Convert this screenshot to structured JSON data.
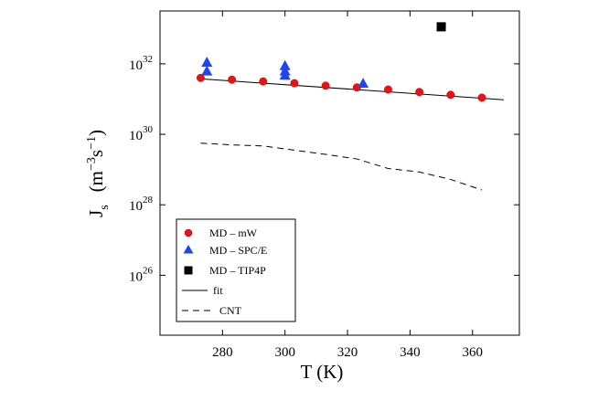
{
  "chart_data": {
    "type": "scatter",
    "xlabel": "T  (K)",
    "ylabel": {
      "main": "J",
      "sub": "s",
      "units": "(m",
      "sup1": "−3",
      "mid": "s",
      "sup2": "−1",
      "close": ")"
    },
    "xlim": [
      260,
      375
    ],
    "ylim_log10": [
      24.3,
      33.5
    ],
    "yscale": "log",
    "x_ticks": [
      280,
      300,
      320,
      340,
      360
    ],
    "x_tick_labels": [
      "280",
      "300",
      "320",
      "340",
      "360"
    ],
    "y_ticks_log10": [
      26,
      28,
      30,
      32
    ],
    "y_tick_labels": [
      {
        "base": "10",
        "exp": "26"
      },
      {
        "base": "10",
        "exp": "28"
      },
      {
        "base": "10",
        "exp": "30"
      },
      {
        "base": "10",
        "exp": "32"
      }
    ],
    "grid": false,
    "legend_position": "bottom-left",
    "series": [
      {
        "name": "MD – mW",
        "marker": "circle",
        "color": "#ee1111",
        "points": [
          [
            273,
            31.6
          ],
          [
            283,
            31.55
          ],
          [
            293,
            31.5
          ],
          [
            303,
            31.45
          ],
          [
            313,
            31.38
          ],
          [
            323,
            31.33
          ],
          [
            333,
            31.27
          ],
          [
            343,
            31.2
          ],
          [
            353,
            31.12
          ],
          [
            363,
            31.04
          ]
        ]
      },
      {
        "name": "MD – SPC/E",
        "marker": "triangle",
        "color": "#2244ee",
        "points": [
          [
            275,
            32.05
          ],
          [
            275,
            31.8
          ],
          [
            300,
            31.95
          ],
          [
            300,
            31.8
          ],
          [
            300,
            31.68
          ],
          [
            325,
            31.45
          ]
        ]
      },
      {
        "name": "MD – TIP4P",
        "marker": "square",
        "color": "#000000",
        "points": [
          [
            350,
            33.05
          ]
        ]
      },
      {
        "name": "fit",
        "style": "solid",
        "color": "#000000",
        "points": [
          [
            272,
            31.58
          ],
          [
            370,
            30.98
          ]
        ]
      },
      {
        "name": "CNT",
        "style": "dashed",
        "color": "#000000",
        "points": [
          [
            273,
            29.75
          ],
          [
            283,
            29.7
          ],
          [
            293,
            29.67
          ],
          [
            303,
            29.55
          ],
          [
            313,
            29.43
          ],
          [
            323,
            29.3
          ],
          [
            333,
            29.03
          ],
          [
            343,
            28.93
          ],
          [
            353,
            28.72
          ],
          [
            363,
            28.42
          ]
        ]
      }
    ]
  }
}
